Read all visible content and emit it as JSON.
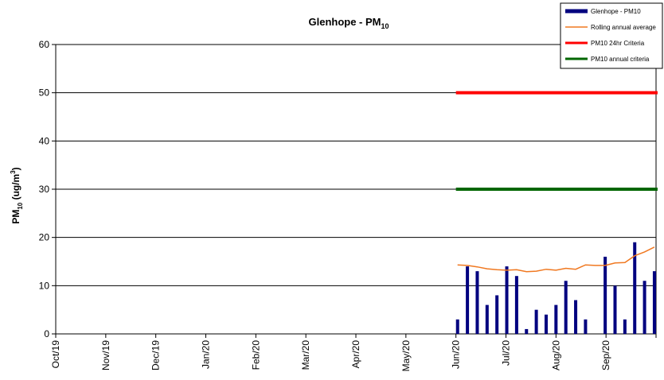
{
  "chart_data": {
    "type": "bar",
    "title": "Glenhope - PM",
    "title_subscript": "10",
    "ylabel_parts": {
      "pm": "PM",
      "sub": "10",
      "unit": " (ug/m",
      "sup": "3",
      "close": ")"
    },
    "xlabel": "",
    "ylim": [
      0,
      60
    ],
    "yticks": [
      0,
      10,
      20,
      30,
      40,
      50,
      60
    ],
    "x_tick_labels": [
      "Oct/19",
      "Nov/19",
      "Dec/19",
      "Jan/20",
      "Feb/20",
      "Mar/20",
      "Apr/20",
      "May/20",
      "Jun/20",
      "Jul/20",
      "Aug/20",
      "Sep/20"
    ],
    "x_range": [
      "2019-10-01",
      "2020-10-01"
    ],
    "grid": "horizontal",
    "legend_placement": "top-right",
    "series": [
      {
        "name": "Glenhope - PM10",
        "kind": "bar",
        "color": "#00007f",
        "points": [
          [
            "2020-06-02",
            3
          ],
          [
            "2020-06-08",
            14
          ],
          [
            "2020-06-14",
            13
          ],
          [
            "2020-06-20",
            6
          ],
          [
            "2020-06-26",
            8
          ],
          [
            "2020-07-02",
            14
          ],
          [
            "2020-07-08",
            12
          ],
          [
            "2020-07-14",
            1
          ],
          [
            "2020-07-20",
            5
          ],
          [
            "2020-07-26",
            4
          ],
          [
            "2020-08-01",
            6
          ],
          [
            "2020-08-07",
            11
          ],
          [
            "2020-08-13",
            7
          ],
          [
            "2020-08-19",
            3
          ],
          [
            "2020-08-31",
            16
          ],
          [
            "2020-09-06",
            10
          ],
          [
            "2020-09-12",
            3
          ],
          [
            "2020-09-18",
            19
          ],
          [
            "2020-09-24",
            11
          ],
          [
            "2020-09-30",
            13
          ]
        ]
      },
      {
        "name": "Rolling annual average",
        "kind": "line",
        "color": "#f07820",
        "points": [
          [
            "2020-06-02",
            14.3
          ],
          [
            "2020-06-08",
            14.2
          ],
          [
            "2020-06-14",
            13.9
          ],
          [
            "2020-06-20",
            13.5
          ],
          [
            "2020-06-26",
            13.3
          ],
          [
            "2020-07-02",
            13.2
          ],
          [
            "2020-07-08",
            13.3
          ],
          [
            "2020-07-14",
            12.9
          ],
          [
            "2020-07-20",
            13.0
          ],
          [
            "2020-07-26",
            13.4
          ],
          [
            "2020-08-01",
            13.2
          ],
          [
            "2020-08-07",
            13.6
          ],
          [
            "2020-08-13",
            13.4
          ],
          [
            "2020-08-19",
            14.3
          ],
          [
            "2020-08-25",
            14.2
          ],
          [
            "2020-08-31",
            14.2
          ],
          [
            "2020-09-06",
            14.7
          ],
          [
            "2020-09-12",
            14.8
          ],
          [
            "2020-09-18",
            16.2
          ],
          [
            "2020-09-24",
            17.0
          ],
          [
            "2020-09-30",
            18.0
          ]
        ]
      },
      {
        "name": "PM10 24hr Criteria",
        "kind": "hline",
        "color": "#ff0000",
        "value": 50,
        "from": "2020-06-01",
        "to": "2020-09-30"
      },
      {
        "name": "PM10 annual criteria",
        "kind": "hline",
        "color": "#006600",
        "value": 30,
        "from": "2020-06-01",
        "to": "2020-09-30"
      }
    ]
  }
}
